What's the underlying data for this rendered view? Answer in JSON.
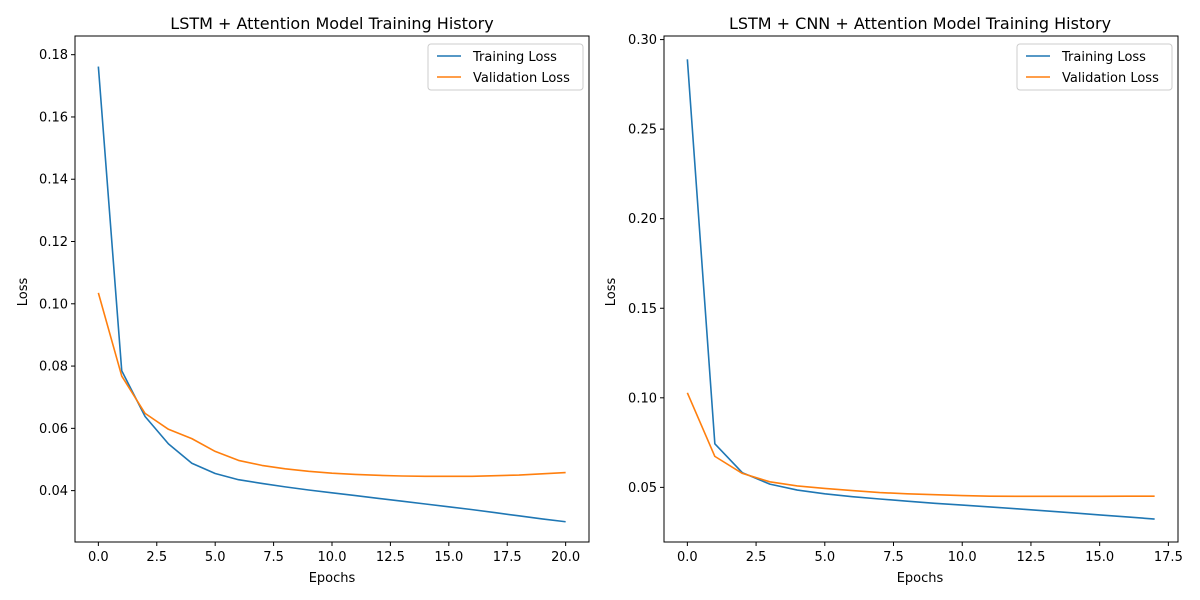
{
  "chart_data": [
    {
      "type": "line",
      "title": "LSTM + Attention Model Training History",
      "xlabel": "Epochs",
      "ylabel": "Loss",
      "xlim": [
        -1,
        21
      ],
      "ylim": [
        0.0235,
        0.186
      ],
      "xticks": [
        0,
        2.5,
        5,
        7.5,
        10,
        12.5,
        15,
        17.5,
        20
      ],
      "xtick_labels": [
        "0.0",
        "2.5",
        "5.0",
        "7.5",
        "10.0",
        "12.5",
        "15.0",
        "17.5",
        "20.0"
      ],
      "yticks": [
        0.04,
        0.06,
        0.08,
        0.1,
        0.12,
        0.14,
        0.16,
        0.18
      ],
      "ytick_labels": [
        "0.04",
        "0.06",
        "0.08",
        "0.10",
        "0.12",
        "0.14",
        "0.16",
        "0.18"
      ],
      "legend_position": "top-right",
      "grid": false,
      "x": [
        0,
        1,
        2,
        3,
        4,
        5,
        6,
        7,
        8,
        9,
        10,
        11,
        12,
        13,
        14,
        15,
        16,
        17,
        18,
        19,
        20
      ],
      "series": [
        {
          "name": "Training Loss",
          "color": "#1f77b4",
          "values": [
            0.1762,
            0.0785,
            0.0638,
            0.055,
            0.0488,
            0.0455,
            0.0435,
            0.0423,
            0.0412,
            0.0402,
            0.0393,
            0.0384,
            0.0375,
            0.0366,
            0.0357,
            0.0348,
            0.0339,
            0.0329,
            0.0319,
            0.0309,
            0.03
          ]
        },
        {
          "name": "Validation Loss",
          "color": "#ff7f0e",
          "values": [
            0.1035,
            0.0768,
            0.0648,
            0.0597,
            0.0567,
            0.0526,
            0.0497,
            0.0481,
            0.047,
            0.0462,
            0.0456,
            0.0452,
            0.0449,
            0.0447,
            0.0446,
            0.0446,
            0.0446,
            0.0448,
            0.045,
            0.0454,
            0.0458
          ]
        }
      ]
    },
    {
      "type": "line",
      "title": "LSTM + CNN + Attention Model Training History",
      "xlabel": "Epochs",
      "ylabel": "Loss",
      "xlim": [
        -0.85,
        17.85
      ],
      "ylim": [
        0.0195,
        0.302
      ],
      "xticks": [
        0,
        2.5,
        5,
        7.5,
        10,
        12.5,
        15,
        17.5
      ],
      "xtick_labels": [
        "0.0",
        "2.5",
        "5.0",
        "7.5",
        "10.0",
        "12.5",
        "15.0",
        "17.5"
      ],
      "yticks": [
        0.05,
        0.1,
        0.15,
        0.2,
        0.25,
        0.3
      ],
      "ytick_labels": [
        "0.05",
        "0.10",
        "0.15",
        "0.20",
        "0.25",
        "0.30"
      ],
      "legend_position": "top-right",
      "grid": false,
      "x": [
        0,
        1,
        2,
        3,
        4,
        5,
        6,
        7,
        8,
        9,
        10,
        11,
        12,
        13,
        14,
        15,
        16,
        17
      ],
      "series": [
        {
          "name": "Training Loss",
          "color": "#1f77b4",
          "values": [
            0.289,
            0.0743,
            0.0582,
            0.0518,
            0.0485,
            0.0464,
            0.0448,
            0.0435,
            0.0423,
            0.0411,
            0.0401,
            0.0391,
            0.038,
            0.0369,
            0.0358,
            0.0346,
            0.0335,
            0.0323
          ]
        },
        {
          "name": "Validation Loss",
          "color": "#ff7f0e",
          "values": [
            0.1028,
            0.0673,
            0.0578,
            0.0531,
            0.0508,
            0.0494,
            0.0482,
            0.0471,
            0.0464,
            0.0459,
            0.0454,
            0.0451,
            0.045,
            0.045,
            0.045,
            0.045,
            0.0451,
            0.0451
          ]
        }
      ]
    }
  ]
}
